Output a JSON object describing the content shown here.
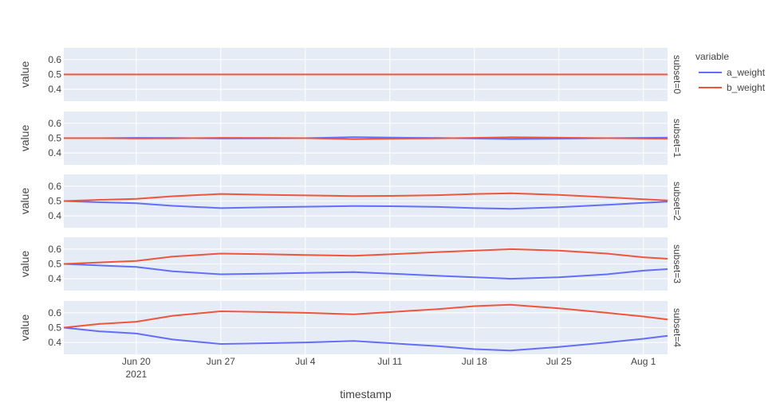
{
  "chart_data": {
    "type": "line",
    "xlabel": "timestamp",
    "ylabel": "value",
    "x_range": [
      "2021-06-14",
      "2021-08-03"
    ],
    "x_ticks": [
      {
        "date": "2021-06-20",
        "label": "Jun 20",
        "sublabel": "2021"
      },
      {
        "date": "2021-06-27",
        "label": "Jun 27",
        "sublabel": ""
      },
      {
        "date": "2021-07-04",
        "label": "Jul 4",
        "sublabel": ""
      },
      {
        "date": "2021-07-11",
        "label": "Jul 11",
        "sublabel": ""
      },
      {
        "date": "2021-07-18",
        "label": "Jul 18",
        "sublabel": ""
      },
      {
        "date": "2021-07-25",
        "label": "Jul 25",
        "sublabel": ""
      },
      {
        "date": "2021-08-01",
        "label": "Aug 1",
        "sublabel": ""
      }
    ],
    "y_range": [
      0.32,
      0.68
    ],
    "y_ticks": [
      0.4,
      0.5,
      0.6
    ],
    "grid": true,
    "legend": {
      "title": "variable",
      "placement": "top-right",
      "entries": [
        {
          "name": "a_weight",
          "color": "#636efa"
        },
        {
          "name": "b_weight",
          "color": "#ef553b"
        }
      ]
    },
    "x_dates": [
      "2021-06-14",
      "2021-06-17",
      "2021-06-20",
      "2021-06-23",
      "2021-06-27",
      "2021-07-01",
      "2021-07-04",
      "2021-07-08",
      "2021-07-11",
      "2021-07-15",
      "2021-07-18",
      "2021-07-21",
      "2021-07-25",
      "2021-07-29",
      "2021-08-01",
      "2021-08-03"
    ],
    "facets": [
      {
        "label": "subset=0",
        "series": [
          {
            "name": "a_weight",
            "values": [
              0.5,
              0.5,
              0.5,
              0.5,
              0.5,
              0.5,
              0.5,
              0.5,
              0.5,
              0.5,
              0.5,
              0.5,
              0.5,
              0.5,
              0.5,
              0.5
            ]
          },
          {
            "name": "b_weight",
            "values": [
              0.5,
              0.5,
              0.5,
              0.5,
              0.5,
              0.5,
              0.5,
              0.5,
              0.5,
              0.5,
              0.5,
              0.5,
              0.5,
              0.5,
              0.5,
              0.5
            ]
          }
        ]
      },
      {
        "label": "subset=1",
        "series": [
          {
            "name": "a_weight",
            "values": [
              0.5,
              0.5,
              0.502,
              0.501,
              0.498,
              0.499,
              0.5,
              0.507,
              0.504,
              0.501,
              0.498,
              0.494,
              0.497,
              0.5,
              0.502,
              0.503
            ]
          },
          {
            "name": "b_weight",
            "values": [
              0.5,
              0.5,
              0.498,
              0.499,
              0.502,
              0.501,
              0.5,
              0.493,
              0.496,
              0.499,
              0.502,
              0.506,
              0.503,
              0.5,
              0.498,
              0.497
            ]
          }
        ]
      },
      {
        "label": "subset=2",
        "series": [
          {
            "name": "a_weight",
            "values": [
              0.5,
              0.492,
              0.485,
              0.468,
              0.452,
              0.458,
              0.462,
              0.466,
              0.465,
              0.46,
              0.452,
              0.448,
              0.458,
              0.474,
              0.488,
              0.496
            ]
          },
          {
            "name": "b_weight",
            "values": [
              0.5,
              0.508,
              0.515,
              0.532,
              0.548,
              0.542,
              0.538,
              0.534,
              0.535,
              0.54,
              0.548,
              0.552,
              0.542,
              0.526,
              0.512,
              0.504
            ]
          }
        ]
      },
      {
        "label": "subset=3",
        "series": [
          {
            "name": "a_weight",
            "values": [
              0.5,
              0.49,
              0.48,
              0.45,
              0.43,
              0.435,
              0.44,
              0.445,
              0.435,
              0.42,
              0.41,
              0.4,
              0.41,
              0.43,
              0.455,
              0.465
            ]
          },
          {
            "name": "b_weight",
            "values": [
              0.5,
              0.51,
              0.52,
              0.55,
              0.57,
              0.565,
              0.56,
              0.555,
              0.565,
              0.58,
              0.59,
              0.6,
              0.59,
              0.57,
              0.545,
              0.535
            ]
          }
        ]
      },
      {
        "label": "subset=4",
        "series": [
          {
            "name": "a_weight",
            "values": [
              0.5,
              0.475,
              0.46,
              0.42,
              0.39,
              0.395,
              0.4,
              0.41,
              0.395,
              0.375,
              0.355,
              0.345,
              0.37,
              0.4,
              0.425,
              0.445
            ]
          },
          {
            "name": "b_weight",
            "values": [
              0.5,
              0.525,
              0.54,
              0.58,
              0.61,
              0.605,
              0.6,
              0.59,
              0.605,
              0.625,
              0.645,
              0.655,
              0.63,
              0.6,
              0.575,
              0.555
            ]
          }
        ]
      }
    ]
  }
}
